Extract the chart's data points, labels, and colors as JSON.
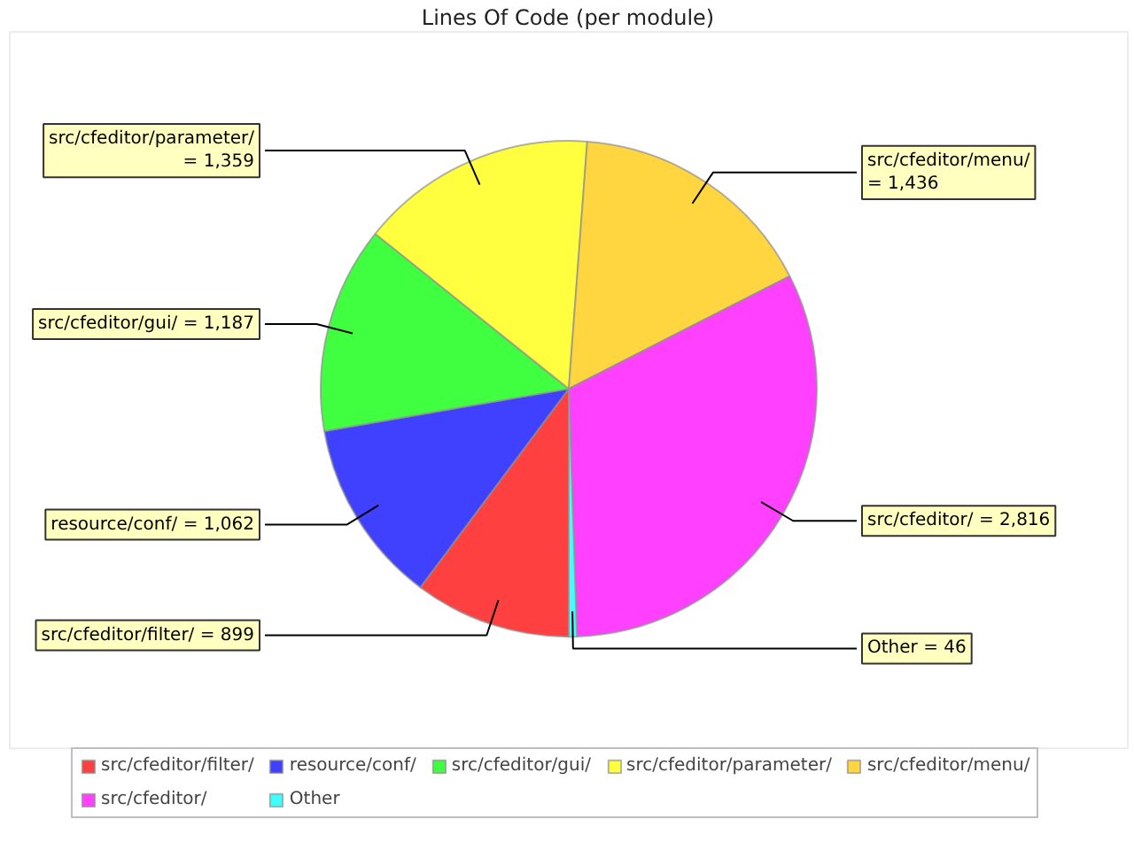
{
  "chart_data": {
    "type": "pie",
    "title": "Lines Of Code (per module)",
    "categories": [
      "src/cfeditor/filter/",
      "resource/conf/",
      "src/cfeditor/gui/",
      "src/cfeditor/parameter/",
      "src/cfeditor/menu/",
      "src/cfeditor/",
      "Other"
    ],
    "values": [
      899,
      1062,
      1187,
      1359,
      1436,
      2816,
      46
    ],
    "value_labels": [
      "= 899",
      "= 1,062",
      "= 1,187",
      "= 1,359",
      "= 1,436",
      "= 2,816",
      "= 46"
    ],
    "colors": [
      "#ff4040",
      "#4040ff",
      "#40ff40",
      "#ffff40",
      "#ffd540",
      "#ff40ff",
      "#40ffff"
    ],
    "legend": "bottom"
  }
}
